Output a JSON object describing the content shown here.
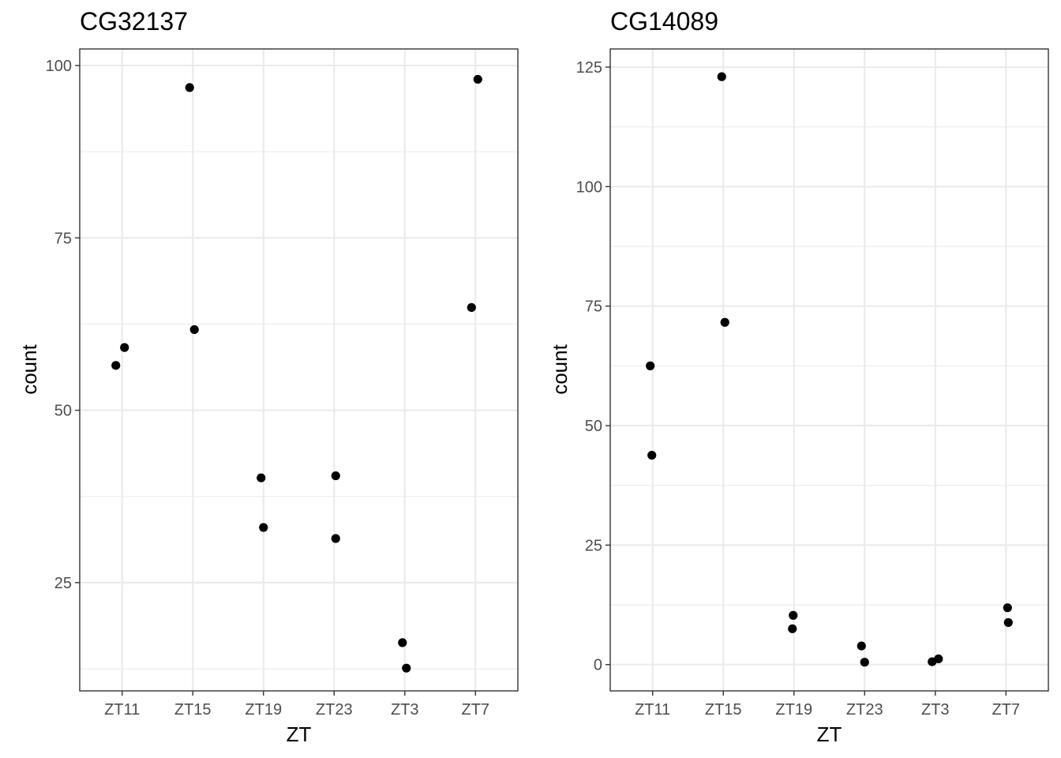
{
  "chart_data": [
    {
      "type": "scatter",
      "title": "CG32137",
      "xlabel": "ZT",
      "ylabel": "count",
      "categories": [
        "ZT11",
        "ZT15",
        "ZT19",
        "ZT23",
        "ZT3",
        "ZT7"
      ],
      "yticks": [
        25,
        50,
        75,
        100
      ],
      "ylim": [
        9.3,
        102.4
      ],
      "grid": true,
      "points": [
        {
          "x": "ZT11",
          "y": 56.5
        },
        {
          "x": "ZT11",
          "y": 59.1
        },
        {
          "x": "ZT15",
          "y": 96.8
        },
        {
          "x": "ZT15",
          "y": 61.7
        },
        {
          "x": "ZT19",
          "y": 40.2
        },
        {
          "x": "ZT19",
          "y": 33.0
        },
        {
          "x": "ZT23",
          "y": 40.5
        },
        {
          "x": "ZT23",
          "y": 31.4
        },
        {
          "x": "ZT3",
          "y": 16.3
        },
        {
          "x": "ZT3",
          "y": 12.6
        },
        {
          "x": "ZT7",
          "y": 98.0
        },
        {
          "x": "ZT7",
          "y": 64.9
        }
      ]
    },
    {
      "type": "scatter",
      "title": "CG14089",
      "xlabel": "ZT",
      "ylabel": "count",
      "categories": [
        "ZT11",
        "ZT15",
        "ZT19",
        "ZT23",
        "ZT3",
        "ZT7"
      ],
      "yticks": [
        0,
        25,
        50,
        75,
        100,
        125
      ],
      "ylim": [
        -5.5,
        128.8
      ],
      "grid": true,
      "points": [
        {
          "x": "ZT11",
          "y": 62.5
        },
        {
          "x": "ZT11",
          "y": 43.8
        },
        {
          "x": "ZT15",
          "y": 123.0
        },
        {
          "x": "ZT15",
          "y": 71.6
        },
        {
          "x": "ZT19",
          "y": 10.3
        },
        {
          "x": "ZT19",
          "y": 7.5
        },
        {
          "x": "ZT23",
          "y": 0.5
        },
        {
          "x": "ZT23",
          "y": 3.9
        },
        {
          "x": "ZT3",
          "y": 0.6
        },
        {
          "x": "ZT3",
          "y": 1.2
        },
        {
          "x": "ZT7",
          "y": 11.9
        },
        {
          "x": "ZT7",
          "y": 8.8
        }
      ]
    }
  ]
}
